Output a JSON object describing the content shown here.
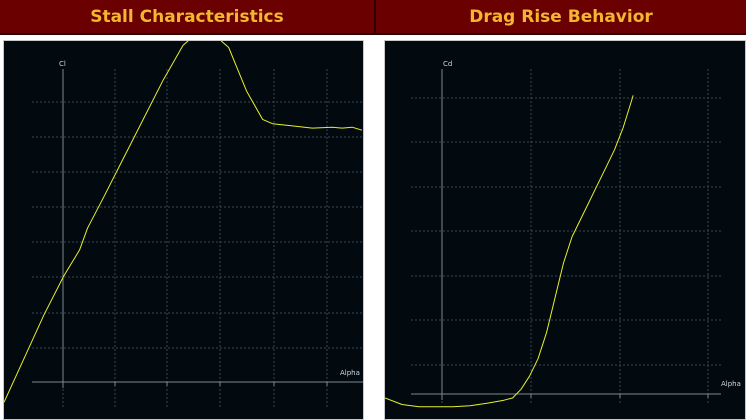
{
  "panels": [
    {
      "title": "Stall Characteristics"
    },
    {
      "title": "Drag Rise Behavior"
    }
  ],
  "chart_data": [
    {
      "type": "line",
      "title": "Stall Characteristics",
      "xlabel": "Alpha",
      "ylabel": "Cl",
      "grid": true,
      "xlim": [
        0,
        18
      ],
      "ylim": [
        0,
        8.5
      ],
      "series": [
        {
          "color": "#e6f02a",
          "x": [
            0,
            1,
            2,
            3,
            3.8,
            4.2,
            5,
            6,
            7,
            8,
            8.5,
            9,
            9.3,
            9.7,
            10.2,
            10.8,
            11.3,
            11.7,
            12.2,
            13,
            13.5,
            14.5,
            15.5,
            16.5,
            17,
            17.5,
            18
          ],
          "y": [
            0.2,
            1.2,
            2.2,
            3.1,
            3.7,
            4.2,
            4.9,
            5.8,
            6.7,
            7.6,
            8.0,
            8.4,
            8.52,
            8.53,
            8.56,
            8.55,
            8.35,
            7.9,
            7.35,
            6.7,
            6.6,
            6.55,
            6.5,
            6.52,
            6.5,
            6.52,
            6.45
          ]
        }
      ]
    },
    {
      "type": "line",
      "title": "Drag Rise Behavior",
      "xlabel": "Alpha",
      "ylabel": "Cd",
      "grid": true,
      "xlim": [
        0,
        18
      ],
      "ylim": [
        0,
        8.2
      ],
      "series": [
        {
          "color": "#e6f02a",
          "x": [
            0,
            1,
            2,
            3,
            4,
            5,
            6,
            7,
            7.5,
            8,
            8.5,
            9,
            9.5,
            10,
            10.5,
            11,
            11.5,
            12,
            12.5,
            13,
            13.5,
            14,
            14.6
          ],
          "y": [
            0.0,
            -0.15,
            -0.2,
            -0.2,
            -0.2,
            -0.18,
            -0.12,
            -0.05,
            0.0,
            0.2,
            0.5,
            0.9,
            1.5,
            2.3,
            3.1,
            3.7,
            4.1,
            4.5,
            4.9,
            5.3,
            5.7,
            6.2,
            6.95
          ]
        }
      ]
    }
  ]
}
